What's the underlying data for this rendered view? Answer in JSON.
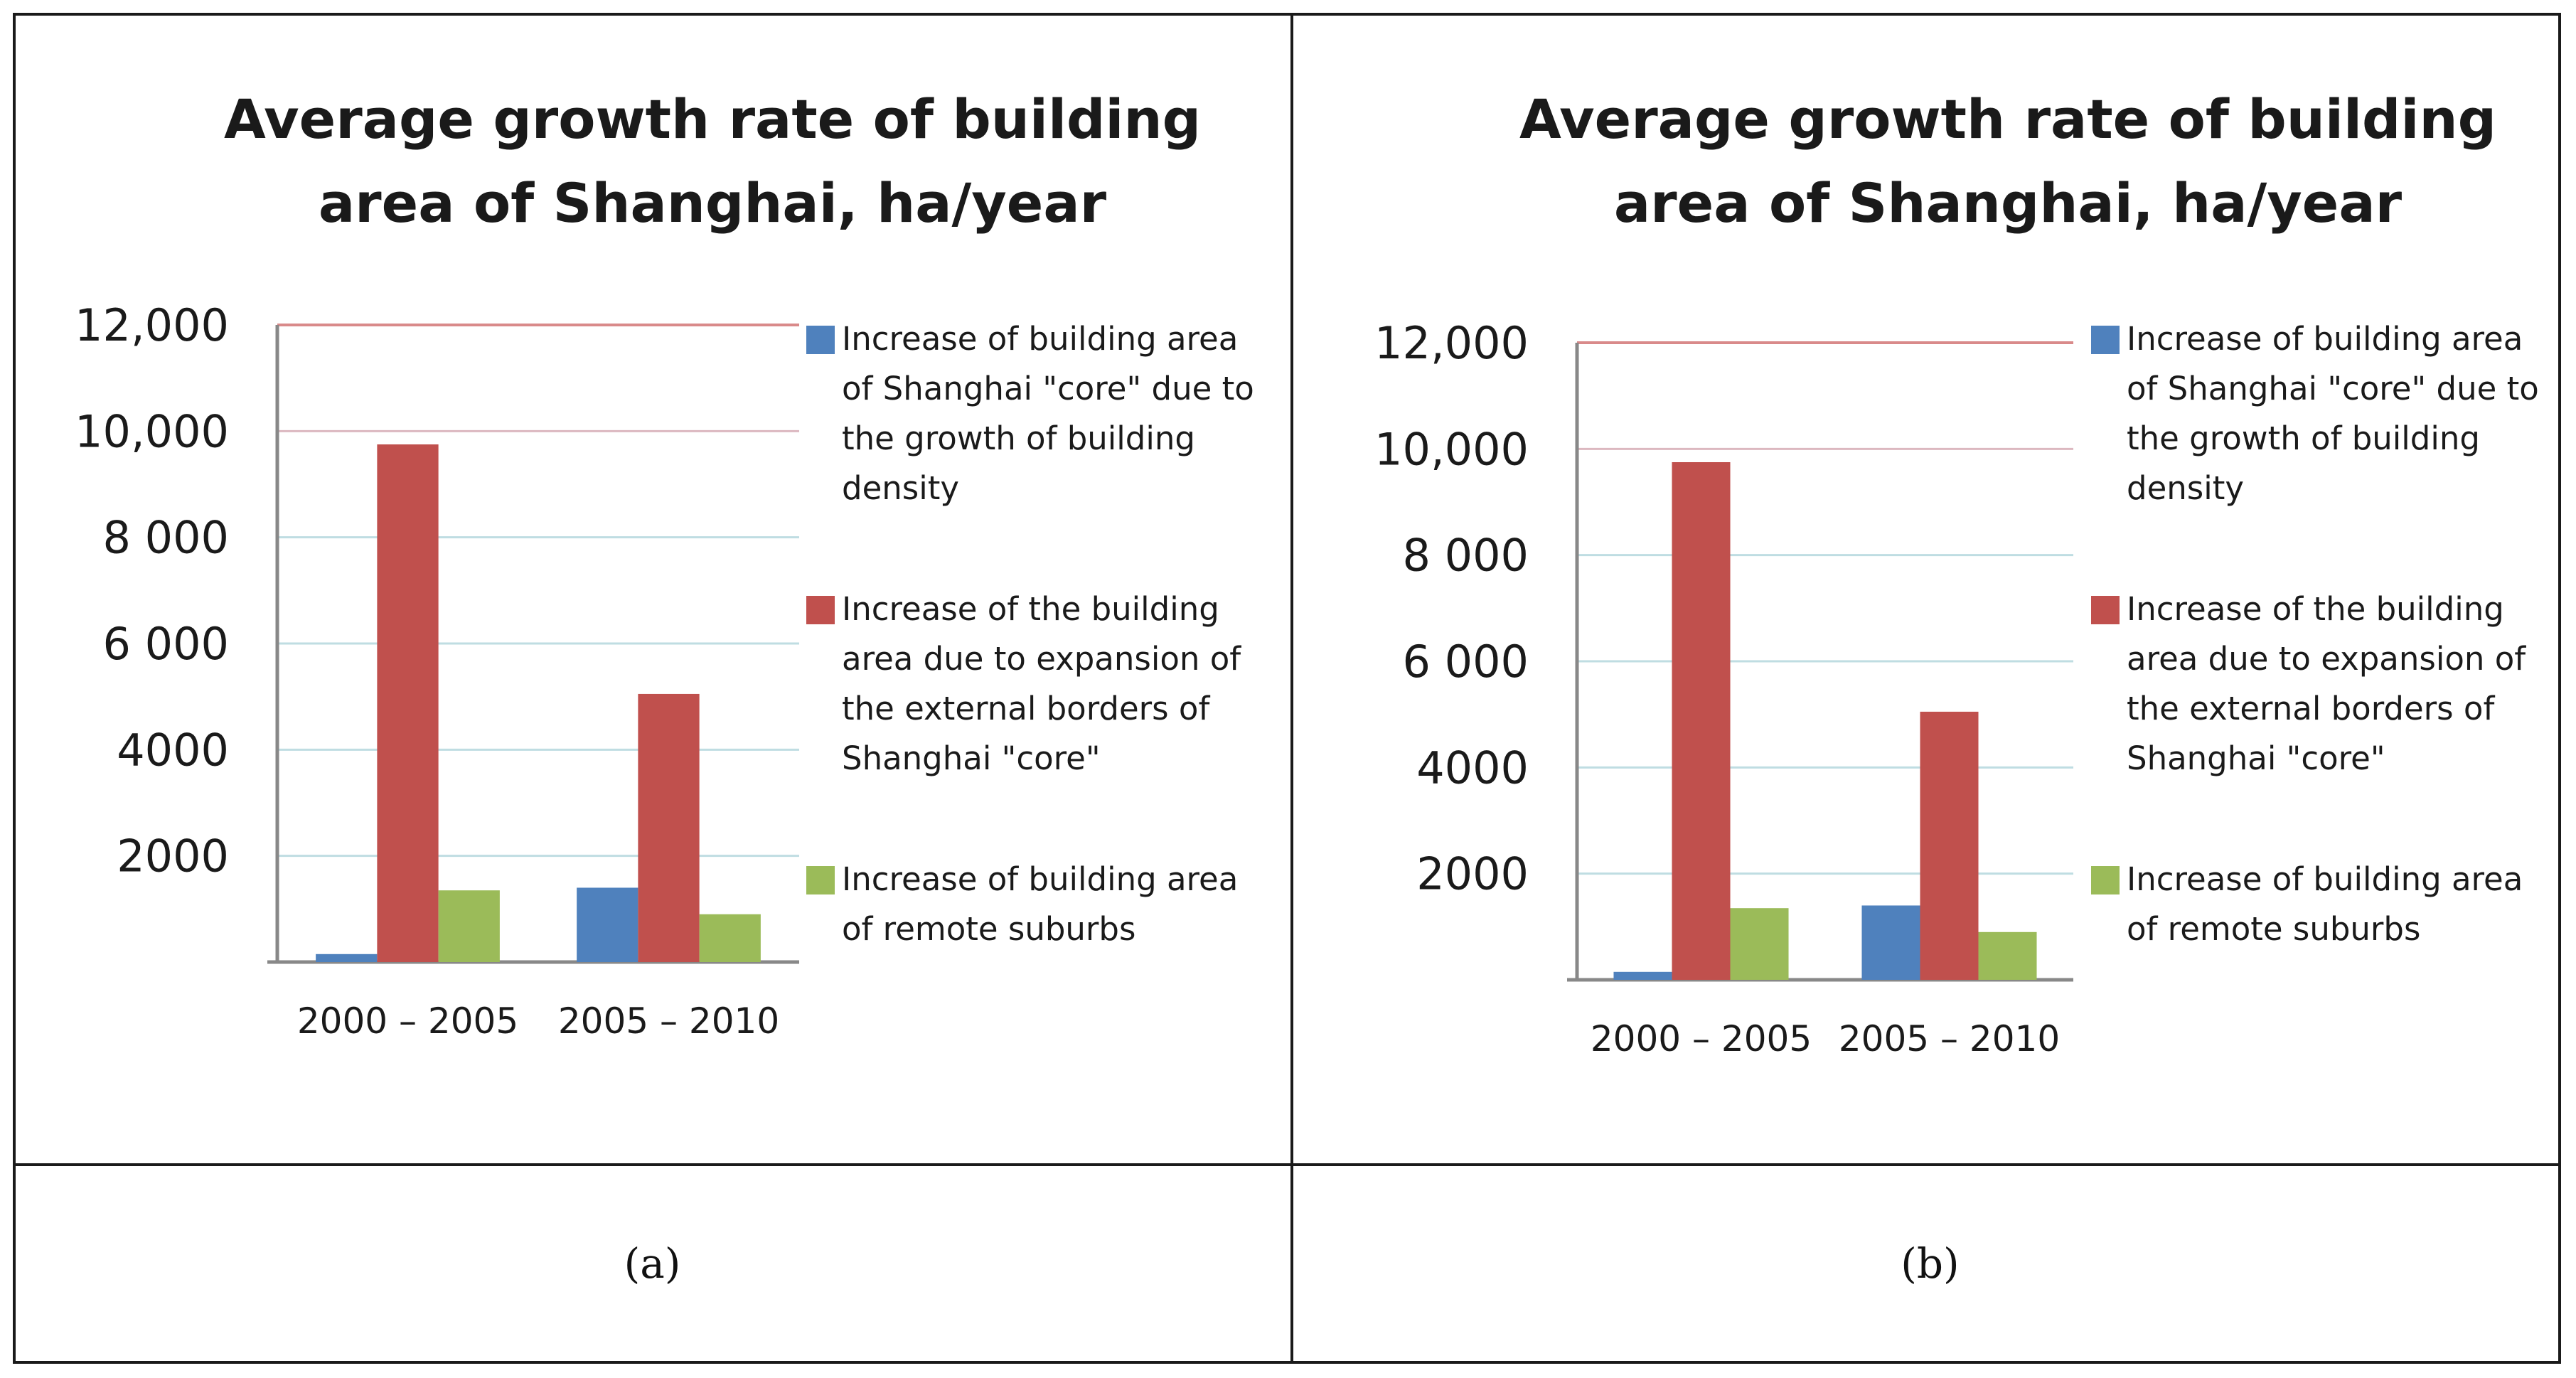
{
  "chart_data": [
    {
      "panel": "a",
      "type": "bar",
      "title": [
        "Average growth rate of building",
        "area of Shanghai, ha/year"
      ],
      "categories": [
        "2000 – 2005",
        "2005 – 2010"
      ],
      "series": [
        {
          "name": "Increase of building area of Shanghai \"core\" due to the growth of building density",
          "legend_lines": [
            "Increase of building area",
            "of Shanghai \"core\" due to",
            "the growth of building",
            "density"
          ],
          "color": "#4f81bd",
          "values": [
            150,
            1400
          ]
        },
        {
          "name": "Increase of the building area due to expansion of the external borders of Shanghai \"core\"",
          "legend_lines": [
            "Increase of the building",
            "area due to expansion of",
            "the external borders of",
            "Shanghai \"core\""
          ],
          "color": "#c0504d",
          "values": [
            9750,
            5050
          ]
        },
        {
          "name": "Increase of building area of remote suburbs",
          "legend_lines": [
            "Increase of building area",
            "of remote suburbs"
          ],
          "color": "#9bbb59",
          "values": [
            1350,
            900
          ]
        }
      ],
      "yticks": [
        0,
        2000,
        4000,
        6000,
        8000,
        10000,
        12000
      ],
      "ytick_labels": [
        "",
        "2000",
        "4000",
        "6 000",
        "8 000",
        "10,000",
        "12,000"
      ],
      "ylim": [
        0,
        12000
      ],
      "xlabel": "",
      "ylabel": "",
      "caption": "(a)"
    },
    {
      "panel": "b",
      "type": "bar",
      "title": [
        "Average growth rate of building",
        "area of Shanghai, ha/year"
      ],
      "categories": [
        "2000 – 2005",
        "2005 – 2010"
      ],
      "series": [
        {
          "name": "Increase of building area of Shanghai \"core\" due to the growth of building density",
          "legend_lines": [
            "Increase of building area",
            "of Shanghai \"core\" due to",
            "the growth of building",
            "density"
          ],
          "color": "#4f81bd",
          "values": [
            150,
            1400
          ]
        },
        {
          "name": "Increase of the building area due to expansion of the external borders of Shanghai \"core\"",
          "legend_lines": [
            "Increase of the building",
            "area due to expansion of",
            "the external borders of",
            "Shanghai \"core\""
          ],
          "color": "#c0504d",
          "values": [
            9750,
            5050
          ]
        },
        {
          "name": "Increase of building area of remote suburbs",
          "legend_lines": [
            "Increase of building area",
            "of remote suburbs"
          ],
          "color": "#9bbb59",
          "values": [
            1350,
            900
          ]
        }
      ],
      "yticks": [
        0,
        2000,
        4000,
        6000,
        8000,
        10000,
        12000
      ],
      "ytick_labels": [
        "",
        "2000",
        "4000",
        "6 000",
        "8 000",
        "10,000",
        "12,000"
      ],
      "ylim": [
        0,
        12000
      ],
      "xlabel": "",
      "ylabel": "",
      "caption": "(b)"
    }
  ]
}
